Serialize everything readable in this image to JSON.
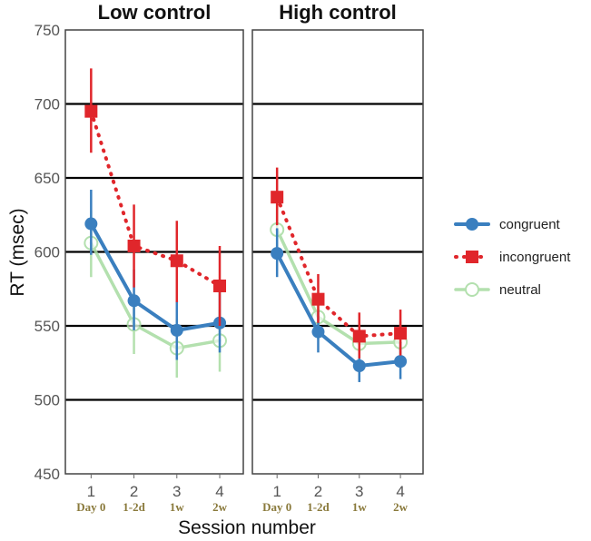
{
  "chart_data": {
    "type": "line",
    "ylabel": "RT (msec)",
    "xlabel": "Session number",
    "ylim": [
      450,
      750
    ],
    "yticks": [
      450,
      500,
      550,
      600,
      650,
      700,
      750
    ],
    "grid": true,
    "legend_position": "right",
    "x": [
      1,
      2,
      3,
      4
    ],
    "x_tick_labels": [
      "1",
      "2",
      "3",
      "4"
    ],
    "x_sublabels": [
      "Day 0",
      "1-2d",
      "1w",
      "2w"
    ],
    "colors": {
      "congruent": "#3a7fbf",
      "incongruent": "#e0262b",
      "neutral": "#a6dba0"
    },
    "legend": [
      "congruent",
      "incongruent",
      "neutral"
    ],
    "panels": [
      {
        "title": "Low control",
        "series": [
          {
            "name": "congruent",
            "values": [
              619,
              567,
              547,
              552
            ],
            "err_low": [
              598,
              547,
              527,
              532
            ],
            "err_high": [
              642,
              588,
              567,
              574
            ]
          },
          {
            "name": "incongruent",
            "values": [
              695,
              604,
              594,
              577
            ],
            "err_low": [
              667,
              576,
              566,
              550
            ],
            "err_high": [
              724,
              632,
              621,
              604
            ]
          },
          {
            "name": "neutral",
            "values": [
              606,
              551,
              535,
              540
            ],
            "err_low": [
              583,
              531,
              515,
              519
            ],
            "err_high": [
              628,
              572,
              555,
              561
            ]
          }
        ]
      },
      {
        "title": "High control",
        "series": [
          {
            "name": "congruent",
            "values": [
              599,
              546,
              523,
              526
            ],
            "err_low": [
              583,
              532,
              512,
              514
            ],
            "err_high": [
              616,
              560,
              535,
              539
            ]
          },
          {
            "name": "incongruent",
            "values": [
              637,
              568,
              543,
              545
            ],
            "err_low": [
              618,
              552,
              528,
              530
            ],
            "err_high": [
              657,
              585,
              559,
              561
            ]
          },
          {
            "name": "neutral",
            "values": [
              615,
              556,
              538,
              539
            ],
            "err_low": [
              597,
              541,
              525,
              526
            ],
            "err_high": [
              633,
              571,
              552,
              553
            ]
          }
        ]
      }
    ]
  }
}
